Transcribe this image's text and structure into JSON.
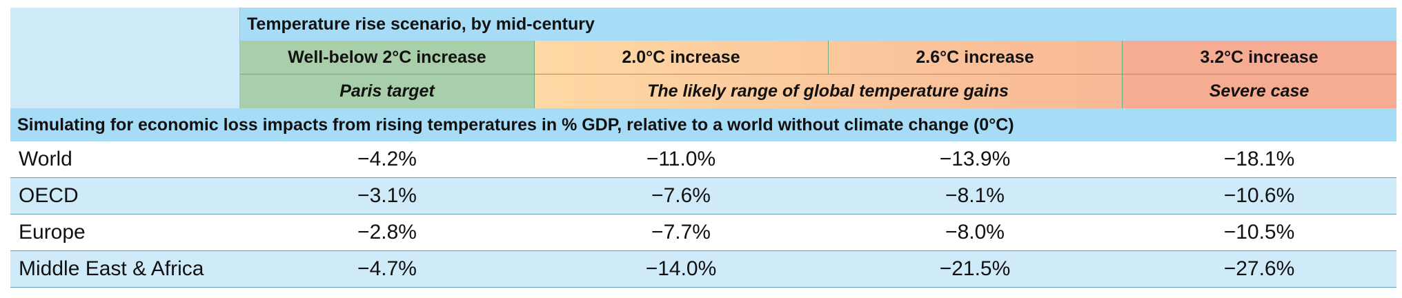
{
  "chart_data": {
    "type": "table",
    "header_title": "Temperature rise scenario, by mid-century",
    "scenarios": [
      {
        "label": "Well-below 2°C increase"
      },
      {
        "label": "2.0°C increase"
      },
      {
        "label": "2.6°C increase"
      },
      {
        "label": "3.2°C increase"
      }
    ],
    "scenario_groups": [
      {
        "label": "Paris target",
        "span": 1
      },
      {
        "label": "The likely range of global temperature gains",
        "span": 2
      },
      {
        "label": "Severe case",
        "span": 1
      }
    ],
    "section_title": "Simulating for economic loss impacts from rising temperatures in % GDP, relative to a world without climate change (0°C)",
    "rows": [
      {
        "region": "World",
        "values": [
          "−4.2%",
          "−11.0%",
          "−13.9%",
          "−18.1%"
        ]
      },
      {
        "region": "OECD",
        "values": [
          "−3.1%",
          "−7.6%",
          "−8.1%",
          "−10.6%"
        ]
      },
      {
        "region": "Europe",
        "values": [
          "−2.8%",
          "−7.7%",
          "−8.0%",
          "−10.5%"
        ]
      },
      {
        "region": "Middle East & Africa",
        "values": [
          "−4.7%",
          "−14.0%",
          "−21.5%",
          "−27.6%"
        ]
      }
    ],
    "numeric_values": {
      "World": [
        -4.2,
        -11.0,
        -13.9,
        -18.1
      ],
      "OECD": [
        -3.1,
        -7.6,
        -8.1,
        -10.6
      ],
      "Europe": [
        -2.8,
        -7.7,
        -8.0,
        -10.5
      ],
      "Middle East & Africa": [
        -4.7,
        -14.0,
        -21.5,
        -27.6
      ]
    },
    "colors": {
      "header_blue": "#a6dcf6",
      "row_alt_blue": "#cfeaf8",
      "paris_green": "#a9cfaa",
      "likely_range_orange": "#fcc79b",
      "severe_red": "#f6ac92"
    }
  }
}
